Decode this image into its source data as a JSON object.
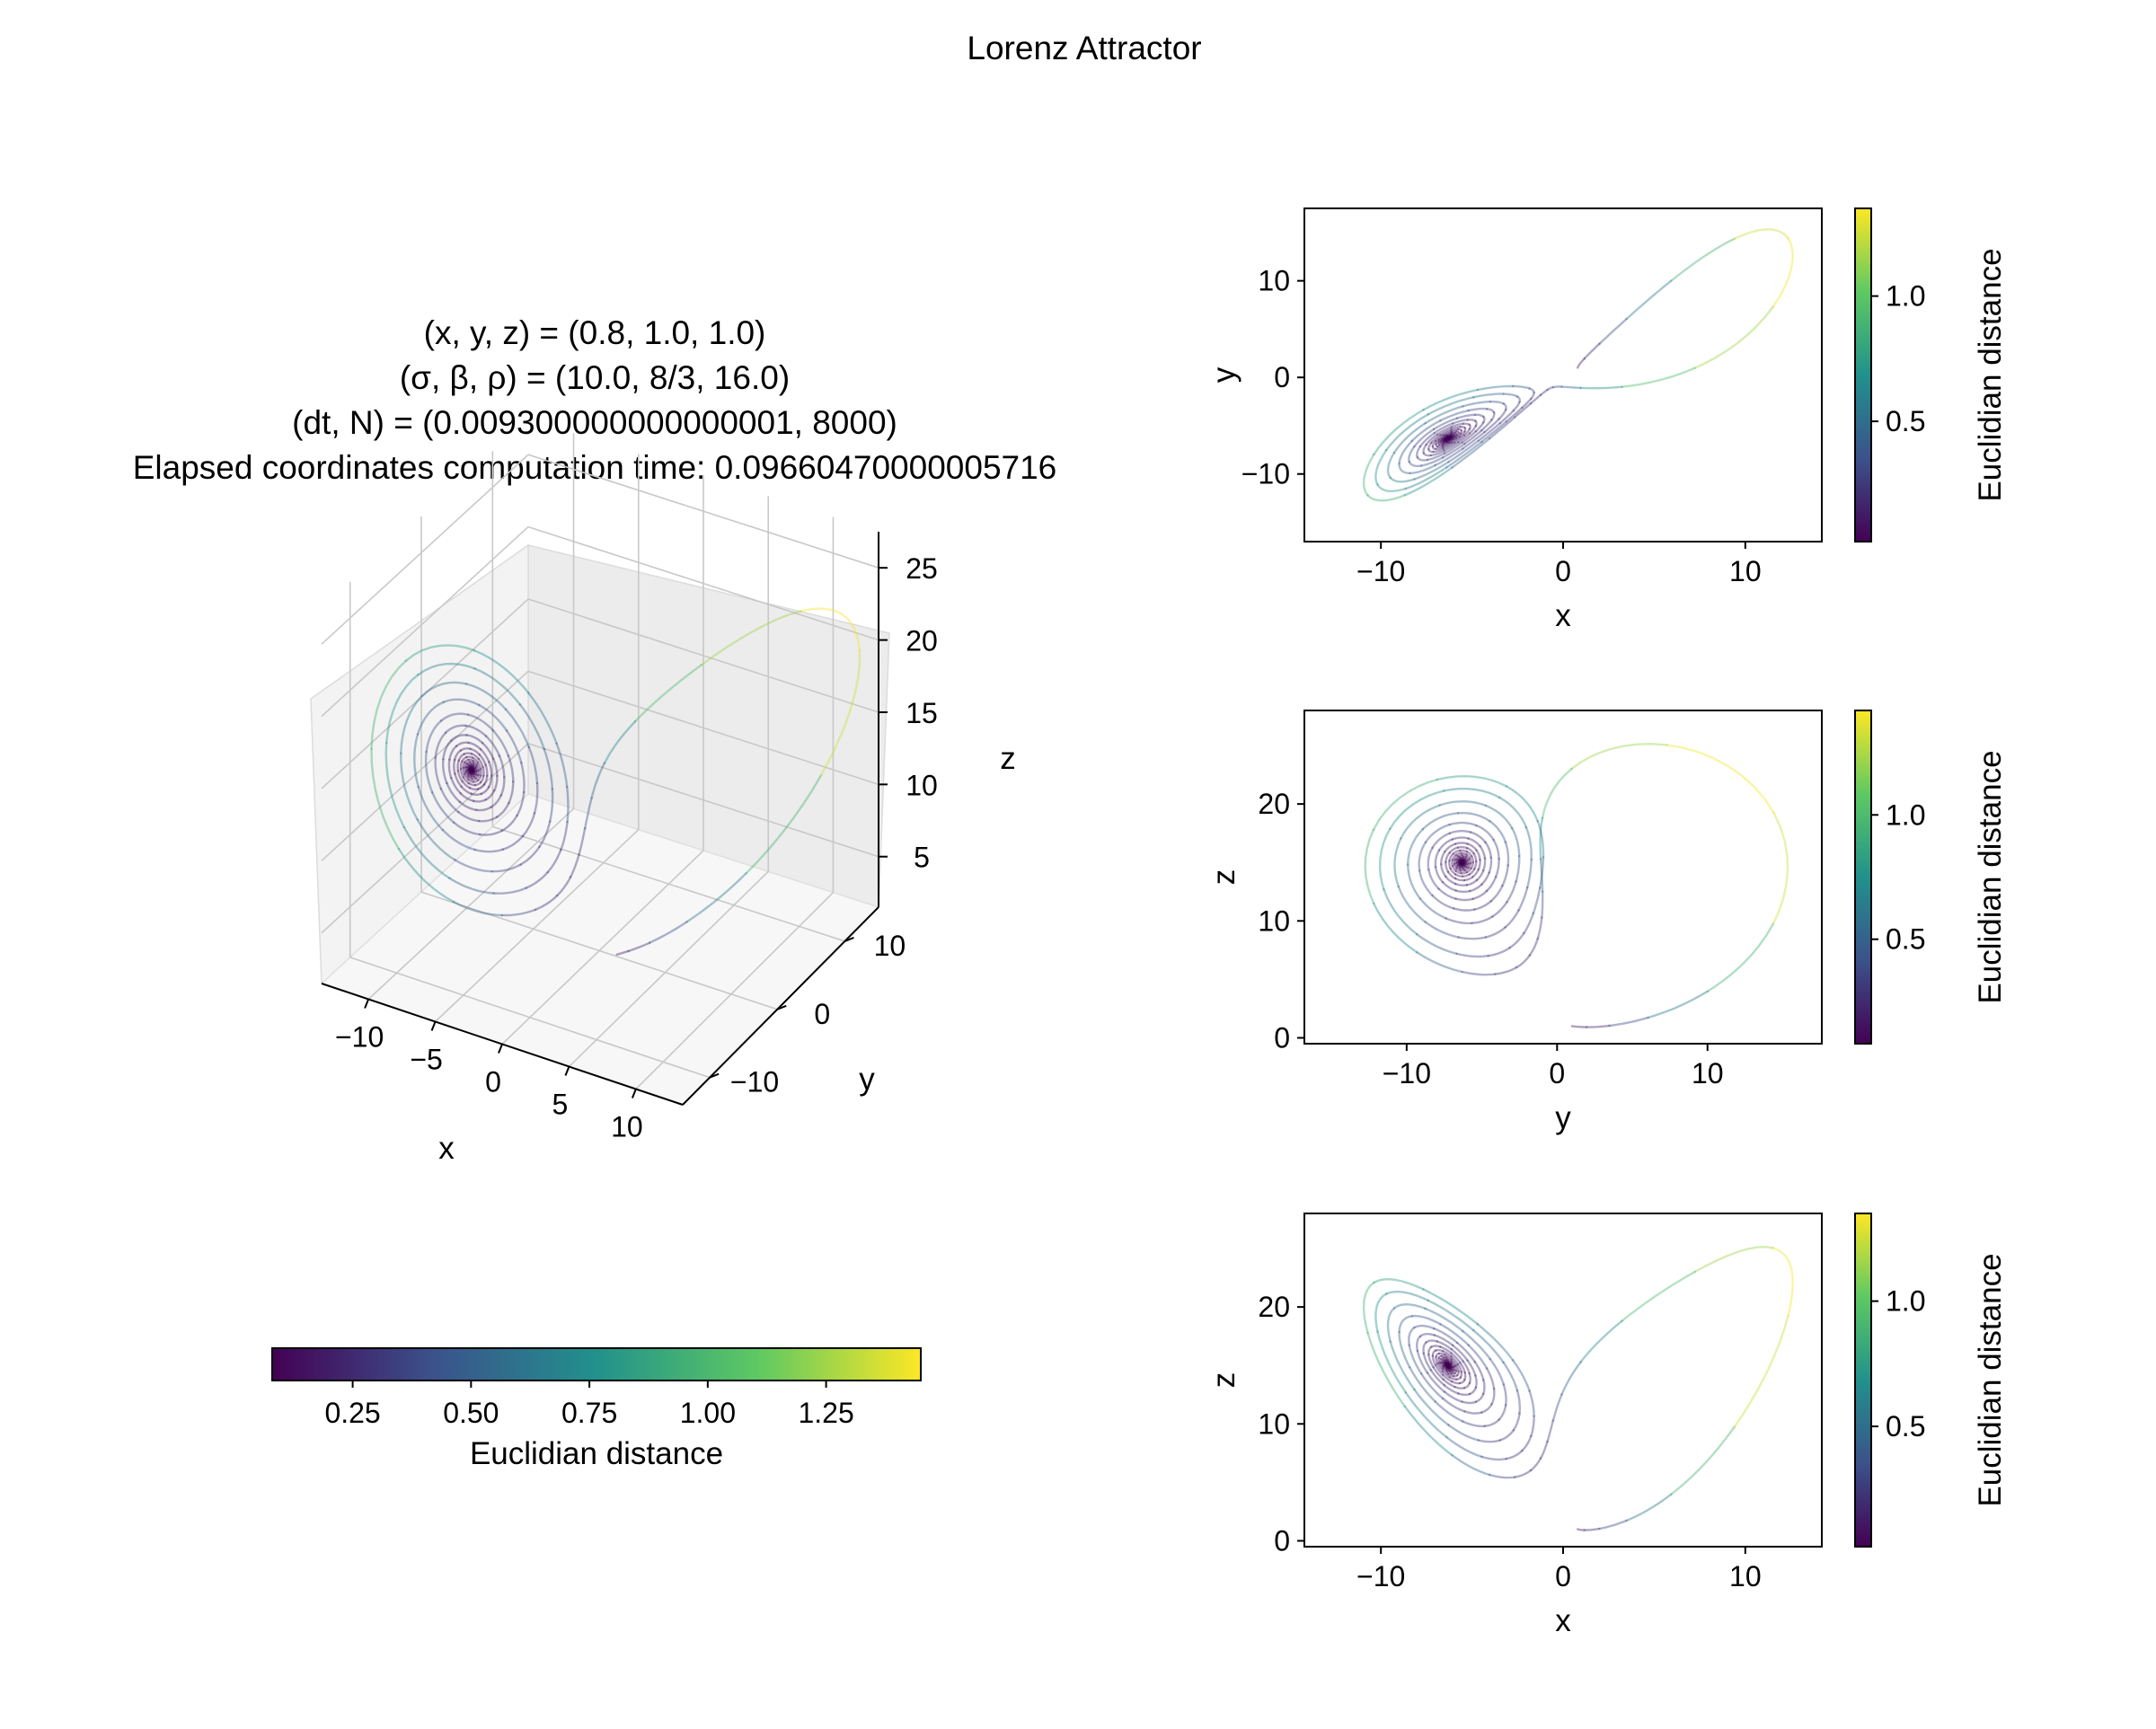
{
  "figure": {
    "suptitle": "Lorenz Attractor",
    "params_title": [
      "(x, y, z) = (0.8, 1.0, 1.0)",
      "(σ, β, ρ) = (10.0, 8/3, 16.0)",
      "(dt, N) = (0.009300000000000001, 8000)",
      "Elapsed coordinates computation time: 0.09660470000005716"
    ],
    "colormap": "viridis",
    "colormap_stops": [
      "#440154",
      "#3b528b",
      "#21918c",
      "#5ec962",
      "#fde725"
    ]
  },
  "chart_data": [
    {
      "type": "line",
      "panel": "3d",
      "projection": "3d",
      "title": "(x, y, z) = (0.8, 1.0, 1.0) / (σ, β, ρ) = (10.0, 8/3, 16.0) / (dt, N) = (0.009300000000000001, 8000) / Elapsed coordinates computation time: 0.09660470000005716",
      "xlabel": "x",
      "ylabel": "y",
      "zlabel": "z",
      "xticks": [
        "−10",
        "−5",
        "0",
        "5",
        "10"
      ],
      "yticks": [
        "−10",
        "0",
        "10"
      ],
      "zticks": [
        "5",
        "10",
        "15",
        "20",
        "25"
      ],
      "color_by": "Euclidian distance",
      "system": {
        "sigma": 10.0,
        "beta": "8/3",
        "rho": 16.0,
        "x0": 0.8,
        "y0": 1.0,
        "z0": 1.0,
        "dt": 0.009300000000000001,
        "N": 8000
      }
    },
    {
      "type": "colorbar",
      "panel": "horizontal-colorbar",
      "label": "Euclidian distance",
      "range": [
        0.08,
        1.45
      ],
      "ticks": [
        "0.25",
        "0.50",
        "0.75",
        "1.00",
        "1.25"
      ]
    },
    {
      "type": "line",
      "panel": "xy",
      "xlabel": "x",
      "ylabel": "y",
      "xlim": [
        -14.2,
        14.2
      ],
      "ylim": [
        -17,
        17.5
      ],
      "xticks": [
        {
          "v": -10,
          "t": "−10"
        },
        {
          "v": 0,
          "t": "0"
        },
        {
          "v": 10,
          "t": "10"
        }
      ],
      "yticks": [
        {
          "v": -10,
          "t": "−10"
        },
        {
          "v": 0,
          "t": "0"
        },
        {
          "v": 10,
          "t": "10"
        }
      ],
      "colorbar": {
        "label": "Euclidian distance",
        "range": [
          0.02,
          1.35
        ],
        "ticks": [
          "0.5",
          "1.0"
        ]
      }
    },
    {
      "type": "line",
      "panel": "yz",
      "xlabel": "y",
      "ylabel": "z",
      "xlim": [
        -16.8,
        17.6
      ],
      "ylim": [
        -0.5,
        28
      ],
      "xticks": [
        {
          "v": -10,
          "t": "−10"
        },
        {
          "v": 0,
          "t": "0"
        },
        {
          "v": 10,
          "t": "10"
        }
      ],
      "yticks": [
        {
          "v": 0,
          "t": "0"
        },
        {
          "v": 10,
          "t": "10"
        },
        {
          "v": 20,
          "t": "20"
        }
      ],
      "colorbar": {
        "label": "Euclidian distance",
        "range": [
          0.08,
          1.42
        ],
        "ticks": [
          "0.5",
          "1.0"
        ]
      }
    },
    {
      "type": "line",
      "panel": "xz",
      "xlabel": "x",
      "ylabel": "z",
      "xlim": [
        -14.2,
        14.2
      ],
      "ylim": [
        -0.5,
        28
      ],
      "xticks": [
        {
          "v": -10,
          "t": "−10"
        },
        {
          "v": 0,
          "t": "0"
        },
        {
          "v": 10,
          "t": "10"
        }
      ],
      "yticks": [
        {
          "v": 0,
          "t": "0"
        },
        {
          "v": 10,
          "t": "10"
        },
        {
          "v": 20,
          "t": "20"
        }
      ],
      "colorbar": {
        "label": "Euclidian distance",
        "range": [
          0.02,
          1.35
        ],
        "ticks": [
          "0.5",
          "1.0"
        ]
      }
    }
  ]
}
